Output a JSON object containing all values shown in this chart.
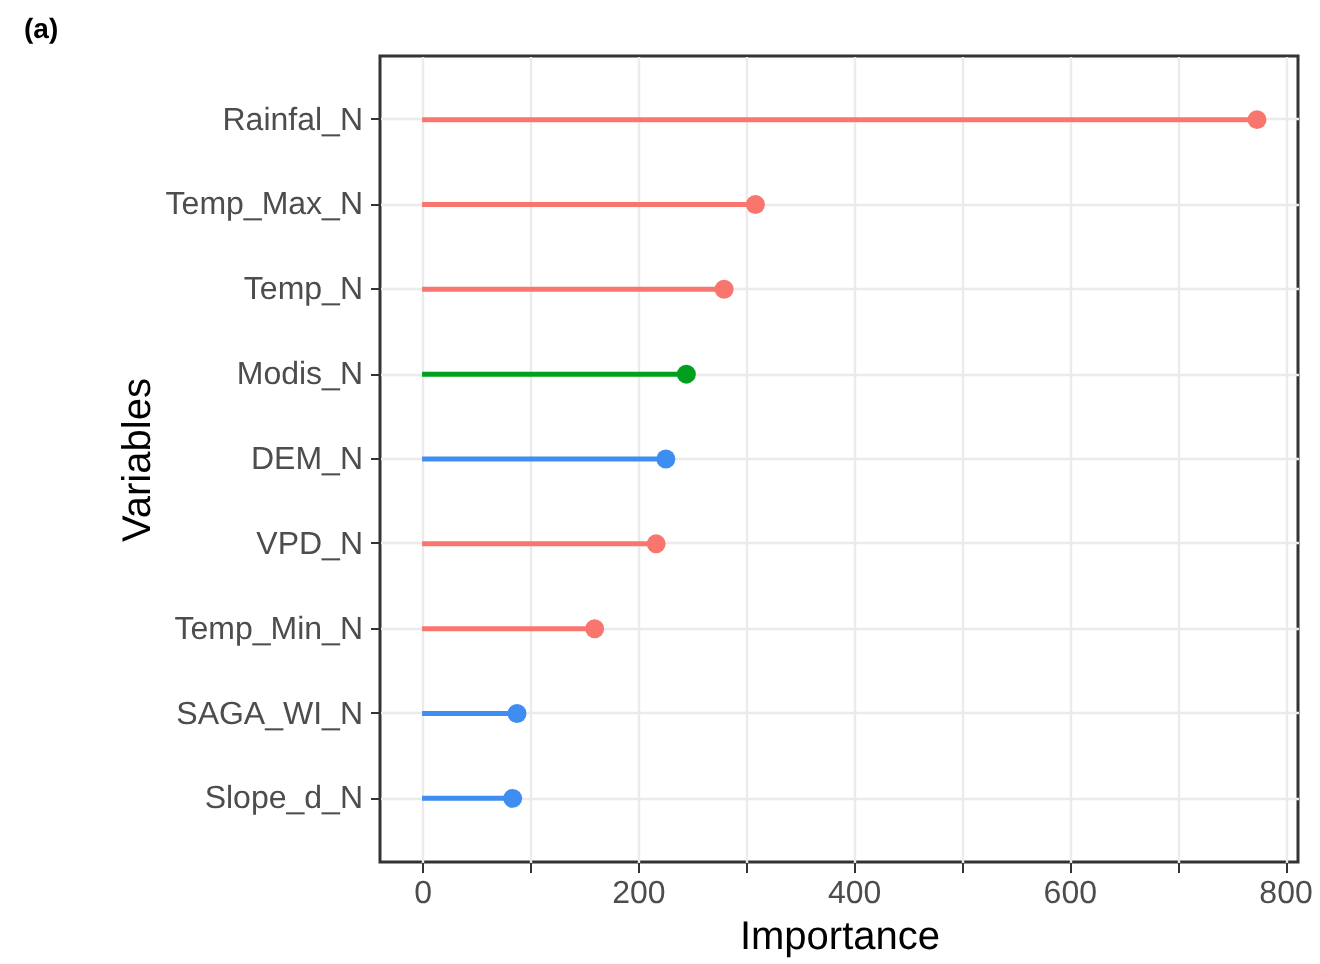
{
  "chart_data": {
    "type": "lollipop",
    "title": "(a)",
    "xlabel": "Importance",
    "ylabel": "Variables",
    "orientation": "horizontal",
    "categories": [
      "Rainfal_N",
      "Temp_Max_N",
      "Temp_N",
      "Modis_N",
      "DEM_N",
      "VPD_N",
      "Temp_Min_N",
      "SAGA_WI_N",
      "Slope_d_N"
    ],
    "values": [
      774,
      309,
      280,
      245,
      226,
      217,
      160,
      88,
      84
    ],
    "colors": [
      "#f8766d",
      "#f8766d",
      "#f8766d",
      "#00a01e",
      "#3d8ef0",
      "#f8766d",
      "#f8766d",
      "#3d8ef0",
      "#3d8ef0"
    ],
    "xlim": [
      -39,
      812
    ],
    "xticks": [
      0,
      {
        "value": 100,
        "label": null
      },
      200,
      {
        "value": 300,
        "label": null
      },
      400,
      {
        "value": 500,
        "label": null
      },
      600,
      {
        "value": 700,
        "label": null
      },
      800
    ],
    "grid": true,
    "marker": "circle"
  }
}
